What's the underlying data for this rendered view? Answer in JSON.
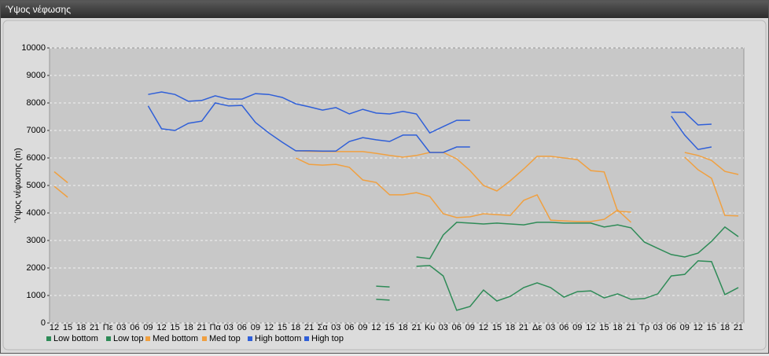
{
  "window_title": "Ύψος νέφωσης",
  "chart_data": {
    "type": "line",
    "y_label": "Ύψος νέφωσης (m)",
    "categories": [
      "12",
      "15",
      "18",
      "21",
      "Πε",
      "03",
      "06",
      "09",
      "12",
      "15",
      "18",
      "21",
      "Πα",
      "03",
      "06",
      "09",
      "12",
      "15",
      "18",
      "21",
      "Σα",
      "03",
      "06",
      "09",
      "12",
      "15",
      "18",
      "21",
      "Κυ",
      "03",
      "06",
      "09",
      "12",
      "15",
      "18",
      "21",
      "Δε",
      "03",
      "06",
      "09",
      "12",
      "15",
      "18",
      "21",
      "Τρ",
      "03",
      "06",
      "09",
      "12",
      "15",
      "18",
      "21"
    ],
    "ylim": [
      0,
      10000
    ],
    "yticks": [
      0,
      1000,
      2000,
      3000,
      4000,
      5000,
      6000,
      7000,
      8000,
      9000,
      10000
    ],
    "grid": true,
    "series": [
      {
        "name": "Low bottom",
        "color": "#2e8b57",
        "values": [
          null,
          null,
          null,
          null,
          null,
          null,
          null,
          null,
          null,
          null,
          null,
          null,
          null,
          null,
          null,
          null,
          null,
          null,
          null,
          null,
          null,
          null,
          null,
          null,
          860,
          830,
          null,
          2060,
          2090,
          1710,
          460,
          600,
          1200,
          800,
          970,
          1290,
          1460,
          1290,
          940,
          1140,
          1170,
          910,
          1060,
          860,
          890,
          1060,
          1710,
          1770,
          2260,
          2230,
          1030,
          1290
        ]
      },
      {
        "name": "Low top",
        "color": "#2e8b57",
        "values": [
          null,
          null,
          null,
          null,
          null,
          null,
          null,
          null,
          null,
          null,
          null,
          null,
          null,
          null,
          null,
          null,
          null,
          null,
          null,
          null,
          null,
          null,
          null,
          null,
          1340,
          1310,
          null,
          2400,
          2340,
          3200,
          3660,
          3630,
          3600,
          3630,
          3600,
          3570,
          3660,
          3660,
          3630,
          3630,
          3630,
          3490,
          3570,
          3460,
          2940,
          2710,
          2490,
          2400,
          2540,
          2970,
          3490,
          3140
        ]
      },
      {
        "name": "Med bottom",
        "color": "#f0a040",
        "values": [
          4970,
          4570,
          null,
          null,
          null,
          null,
          null,
          null,
          null,
          null,
          null,
          null,
          null,
          null,
          null,
          null,
          null,
          null,
          6000,
          5770,
          5740,
          5770,
          5660,
          5200,
          5110,
          4660,
          4660,
          4740,
          4600,
          3970,
          3830,
          3860,
          3970,
          3940,
          3910,
          4460,
          4660,
          3740,
          3710,
          3690,
          3690,
          3770,
          4110,
          3660,
          null,
          null,
          null,
          6030,
          5570,
          5260,
          3910,
          3890
        ]
      },
      {
        "name": "Med top",
        "color": "#f0a040",
        "values": [
          5500,
          5100,
          null,
          null,
          null,
          null,
          null,
          null,
          null,
          null,
          null,
          null,
          null,
          null,
          null,
          null,
          null,
          null,
          6260,
          6240,
          6230,
          6230,
          6230,
          6230,
          6170,
          6090,
          6030,
          6090,
          6200,
          6200,
          5970,
          5540,
          5000,
          4800,
          5170,
          5600,
          6060,
          6060,
          6000,
          5940,
          5540,
          5490,
          4060,
          4030,
          null,
          null,
          null,
          6200,
          6090,
          5910,
          5510,
          5400
        ]
      },
      {
        "name": "High bottom",
        "color": "#2f5fd8",
        "values": [
          null,
          null,
          null,
          null,
          null,
          null,
          null,
          7890,
          7060,
          7000,
          7260,
          7340,
          8000,
          7890,
          7910,
          7290,
          6910,
          6570,
          6260,
          6260,
          6250,
          6250,
          6600,
          6740,
          6660,
          6600,
          6830,
          6830,
          6200,
          6200,
          6400,
          6400,
          null,
          null,
          null,
          null,
          null,
          null,
          null,
          null,
          null,
          null,
          null,
          null,
          null,
          null,
          7520,
          6830,
          6310,
          6400,
          null,
          null
        ]
      },
      {
        "name": "High top",
        "color": "#2f5fd8",
        "values": [
          null,
          null,
          null,
          null,
          null,
          null,
          null,
          8310,
          8400,
          8310,
          8060,
          8090,
          8260,
          8140,
          8140,
          8340,
          8310,
          8200,
          7970,
          7860,
          7740,
          7830,
          7600,
          7770,
          7630,
          7600,
          7690,
          7600,
          6910,
          7140,
          7370,
          7370,
          null,
          null,
          null,
          null,
          null,
          null,
          null,
          null,
          null,
          null,
          null,
          null,
          null,
          null,
          7660,
          7660,
          7200,
          7230,
          null,
          null
        ]
      }
    ]
  }
}
